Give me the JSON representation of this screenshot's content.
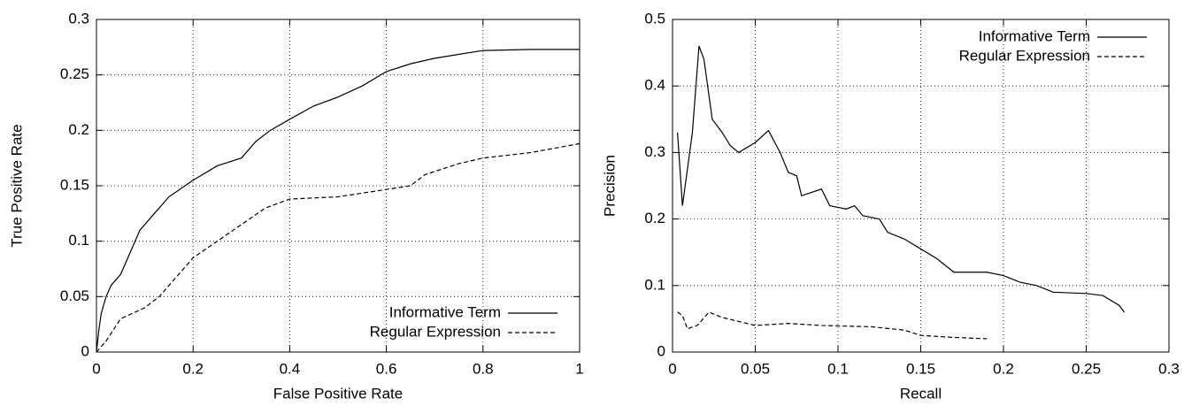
{
  "chart_data": [
    {
      "type": "line",
      "xlabel": "False Positive Rate",
      "ylabel": "True Positive Rate",
      "xlim": [
        0,
        1
      ],
      "ylim": [
        0,
        0.3
      ],
      "xticks": [
        0,
        0.2,
        0.4,
        0.6,
        0.8,
        1
      ],
      "yticks": [
        0,
        0.05,
        0.1,
        0.15,
        0.2,
        0.25,
        0.3
      ],
      "grid": true,
      "legend": "lower right",
      "series": [
        {
          "name": "Informative Term",
          "color": "#000000",
          "line_style": "solid",
          "x": [
            0,
            0.005,
            0.01,
            0.02,
            0.03,
            0.05,
            0.07,
            0.09,
            0.12,
            0.15,
            0.2,
            0.25,
            0.3,
            0.33,
            0.36,
            0.4,
            0.45,
            0.5,
            0.55,
            0.6,
            0.65,
            0.7,
            0.8,
            0.9,
            1
          ],
          "values": [
            0,
            0.02,
            0.035,
            0.05,
            0.06,
            0.07,
            0.09,
            0.11,
            0.125,
            0.14,
            0.155,
            0.168,
            0.175,
            0.19,
            0.2,
            0.21,
            0.222,
            0.23,
            0.24,
            0.253,
            0.26,
            0.265,
            0.272,
            0.273,
            0.273
          ]
        },
        {
          "name": "Regular Expression",
          "color": "#000000",
          "line_style": "dashed",
          "x": [
            0,
            0.02,
            0.05,
            0.1,
            0.13,
            0.16,
            0.2,
            0.25,
            0.3,
            0.35,
            0.4,
            0.5,
            0.65,
            0.68,
            0.75,
            0.8,
            0.9,
            1
          ],
          "values": [
            0,
            0.01,
            0.03,
            0.04,
            0.05,
            0.065,
            0.085,
            0.1,
            0.115,
            0.13,
            0.138,
            0.14,
            0.15,
            0.16,
            0.17,
            0.175,
            0.18,
            0.188
          ]
        }
      ]
    },
    {
      "type": "line",
      "xlabel": "Recall",
      "ylabel": "Precision",
      "xlim": [
        0,
        0.3
      ],
      "ylim": [
        0,
        0.5
      ],
      "xticks": [
        0,
        0.05,
        0.1,
        0.15,
        0.2,
        0.25,
        0.3
      ],
      "yticks": [
        0,
        0.1,
        0.2,
        0.3,
        0.4,
        0.5
      ],
      "grid": true,
      "legend": "upper right",
      "series": [
        {
          "name": "Informative Term",
          "color": "#000000",
          "line_style": "solid",
          "x": [
            0.003,
            0.006,
            0.012,
            0.016,
            0.019,
            0.024,
            0.03,
            0.035,
            0.04,
            0.05,
            0.058,
            0.065,
            0.07,
            0.075,
            0.078,
            0.09,
            0.095,
            0.105,
            0.11,
            0.115,
            0.125,
            0.13,
            0.14,
            0.15,
            0.16,
            0.17,
            0.18,
            0.19,
            0.2,
            0.21,
            0.22,
            0.23,
            0.25,
            0.26,
            0.27,
            0.273
          ],
          "values": [
            0.33,
            0.22,
            0.33,
            0.46,
            0.44,
            0.35,
            0.33,
            0.31,
            0.3,
            0.315,
            0.333,
            0.3,
            0.27,
            0.265,
            0.235,
            0.245,
            0.22,
            0.215,
            0.22,
            0.205,
            0.2,
            0.18,
            0.17,
            0.155,
            0.14,
            0.12,
            0.12,
            0.12,
            0.115,
            0.105,
            0.1,
            0.09,
            0.088,
            0.085,
            0.07,
            0.06
          ]
        },
        {
          "name": "Regular Expression",
          "color": "#000000",
          "line_style": "dashed",
          "x": [
            0.003,
            0.006,
            0.009,
            0.015,
            0.022,
            0.03,
            0.05,
            0.07,
            0.09,
            0.12,
            0.14,
            0.15,
            0.17,
            0.19
          ],
          "values": [
            0.06,
            0.055,
            0.035,
            0.04,
            0.06,
            0.052,
            0.04,
            0.043,
            0.04,
            0.038,
            0.033,
            0.025,
            0.022,
            0.02
          ]
        }
      ]
    }
  ]
}
